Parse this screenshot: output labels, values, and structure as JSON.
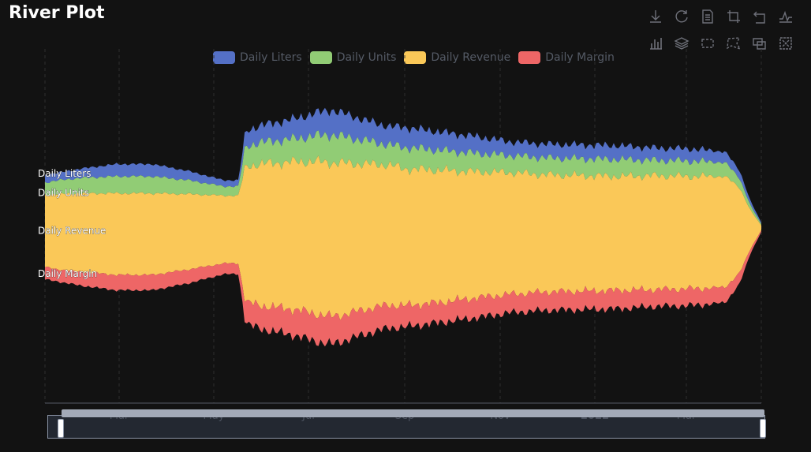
{
  "title": "River Plot",
  "toolbox": {
    "icons": [
      "download-icon",
      "refresh-icon",
      "data-view-icon",
      "zoom-icon",
      "zoom-reset-icon",
      "line-chart-icon",
      "bar-chart-icon",
      "stack-icon",
      "select-rect-icon",
      "select-lasso-icon",
      "select-keep-icon",
      "select-clear-icon"
    ]
  },
  "colors": {
    "liters": "#5470c6",
    "units": "#91cc75",
    "revenue": "#fac858",
    "margin": "#ee6666",
    "background": "#121212"
  },
  "chart_data": {
    "type": "area",
    "subtype": "themeRiver",
    "legend_position": "top",
    "series": [
      {
        "name": "Daily Liters",
        "color": "#5470c6"
      },
      {
        "name": "Daily Units",
        "color": "#91cc75"
      },
      {
        "name": "Daily Revenue",
        "color": "#fac858"
      },
      {
        "name": "Daily Margin",
        "color": "#ee6666"
      }
    ],
    "x_ticks": [
      "Mar",
      "May",
      "Jul",
      "Sep",
      "Nov",
      "2022",
      "Mar"
    ],
    "y_range": [
      -100,
      100
    ],
    "control_points": {
      "t": [
        0,
        0.02,
        0.05,
        0.1,
        0.15,
        0.2,
        0.25,
        0.27,
        0.28,
        0.3,
        0.35,
        0.38,
        0.4,
        0.42,
        0.45,
        0.48,
        0.5,
        0.55,
        0.6,
        0.65,
        0.7,
        0.75,
        0.8,
        0.85,
        0.9,
        0.95,
        0.97,
        0.985,
        1.0
      ],
      "liters": [
        5,
        5,
        6,
        8,
        8,
        6,
        4,
        4,
        10,
        11,
        13,
        15,
        16,
        15,
        13,
        12,
        13,
        12,
        11,
        9,
        9,
        9,
        9,
        8,
        8,
        7,
        5,
        3,
        1
      ],
      "units": [
        8,
        9,
        10,
        11,
        11,
        9,
        6,
        6,
        13,
        14,
        15,
        17,
        18,
        17,
        15,
        13,
        14,
        13,
        12,
        11,
        11,
        11,
        11,
        10,
        10,
        9,
        6,
        3,
        1
      ],
      "revenue": [
        47,
        49,
        51,
        53,
        53,
        49,
        44,
        44,
        88,
        92,
        96,
        99,
        100,
        98,
        94,
        91,
        89,
        86,
        82,
        79,
        76,
        75,
        74,
        74,
        73,
        72,
        55,
        25,
        3
      ],
      "margin": [
        8,
        8,
        9,
        10,
        10,
        9,
        7,
        7,
        14,
        15,
        17,
        18,
        18,
        17,
        16,
        15,
        14,
        13,
        13,
        12,
        12,
        12,
        12,
        11,
        11,
        10,
        7,
        3,
        1
      ]
    }
  },
  "axis": {
    "ticks": [
      "Mar",
      "May",
      "Jul",
      "Sep",
      "Nov",
      "2022",
      "Mar"
    ]
  }
}
